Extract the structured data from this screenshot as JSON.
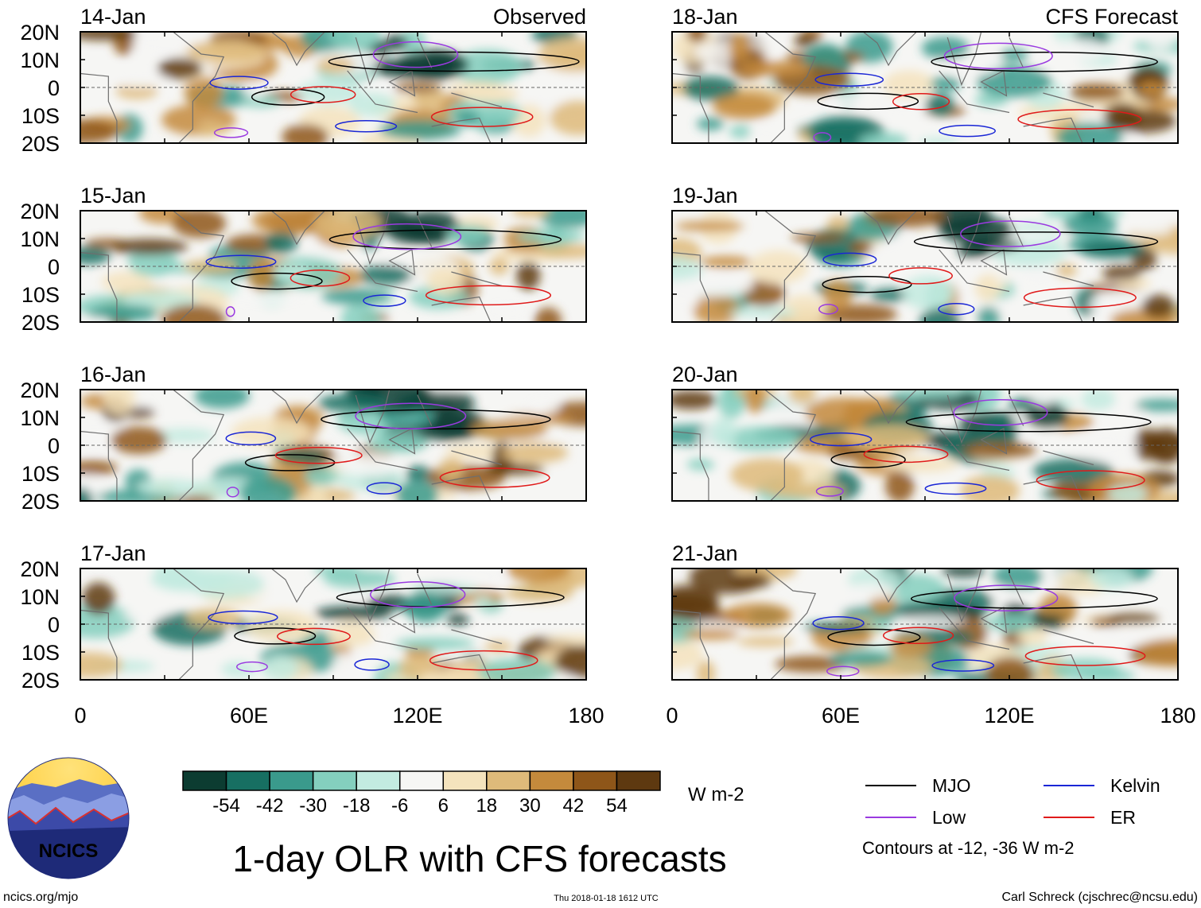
{
  "chart_data": {
    "type": "heatmap",
    "title": "1-day OLR with CFS forecasts",
    "variable": "OLR anomaly",
    "units": "W m-2",
    "x_range": [
      0,
      180
    ],
    "y_range": [
      -20,
      20
    ],
    "x_ticks": [
      "0",
      "60E",
      "120E",
      "180"
    ],
    "y_ticks": [
      "20N",
      "10N",
      "0",
      "10S",
      "20S"
    ],
    "columns": [
      {
        "label": "Observed",
        "dates": [
          "14-Jan",
          "15-Jan",
          "16-Jan",
          "17-Jan"
        ]
      },
      {
        "label": "CFS Forecast",
        "dates": [
          "18-Jan",
          "19-Jan",
          "20-Jan",
          "21-Jan"
        ]
      }
    ],
    "colorbar": {
      "ticks": [
        "-54",
        "-42",
        "-30",
        "-18",
        "-6",
        "6",
        "18",
        "30",
        "42",
        "54"
      ],
      "colors": [
        "#0c3c31",
        "#176f62",
        "#3a9a8c",
        "#84cfbe",
        "#c3ebe1",
        "#f6f6f4",
        "#f4e3bd",
        "#deba7a",
        "#c48a3c",
        "#8e5619",
        "#5e3910"
      ],
      "units": "W m-2"
    },
    "legend": [
      {
        "name": "MJO",
        "color": "#000000"
      },
      {
        "name": "Kelvin",
        "color": "#1a26d6"
      },
      {
        "name": "Low",
        "color": "#9a3ae0"
      },
      {
        "name": "ER",
        "color": "#e01a1a"
      }
    ],
    "contour_note": "Contours at -12, -36 W m-2"
  },
  "footer": {
    "logo_text": "NCICS",
    "url": "ncics.org/mjo",
    "timestamp": "Thu 2018-01-18 1612 UTC",
    "author": "Carl Schreck (cjschrec@ncsu.edu)"
  }
}
